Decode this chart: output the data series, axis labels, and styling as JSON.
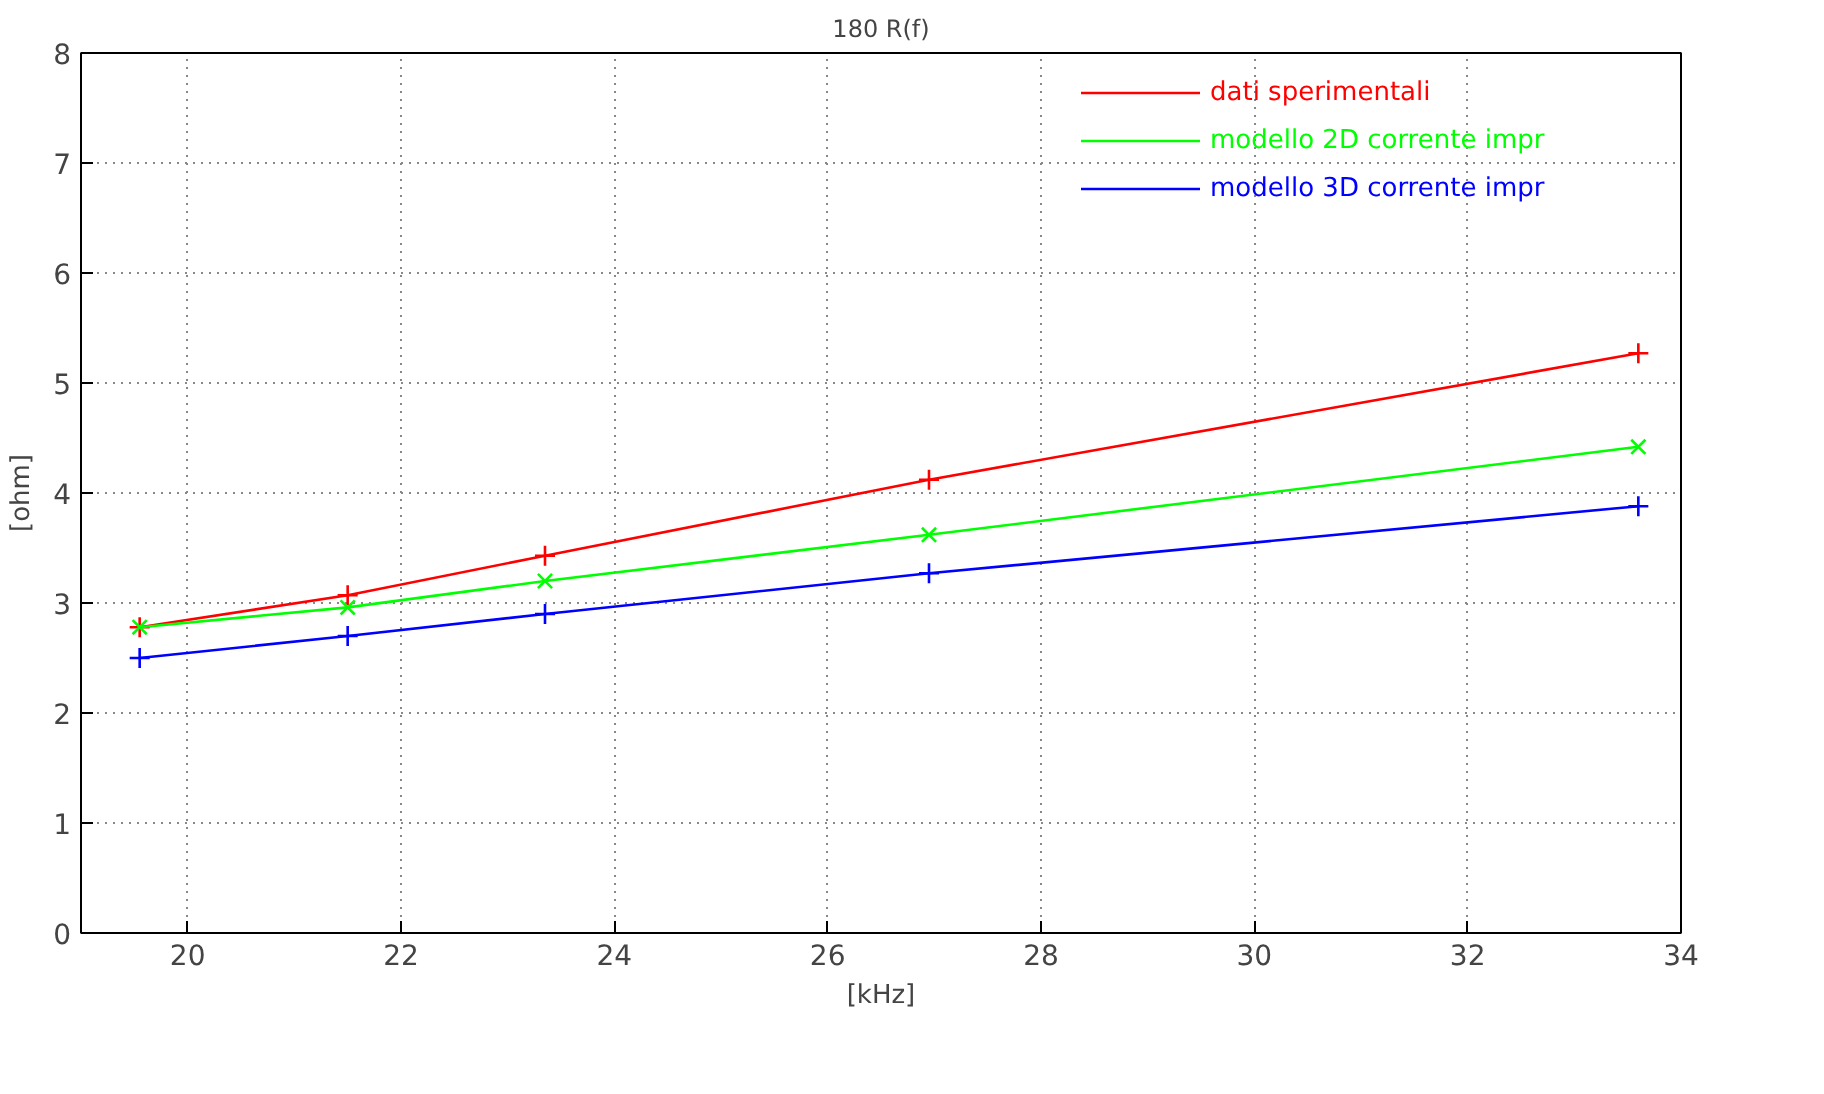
{
  "chart_data": {
    "type": "line",
    "title": "180 R(f)",
    "xlabel": "[kHz]",
    "ylabel": "[ohm]",
    "xlim": [
      19,
      34
    ],
    "xticks": [
      20,
      22,
      24,
      26,
      28,
      30,
      32,
      34
    ],
    "ylim": [
      0,
      8
    ],
    "yticks": [
      0,
      1,
      2,
      3,
      4,
      5,
      6,
      7,
      8
    ],
    "grid": true,
    "legend": "top right",
    "line_style": "solid",
    "x": [
      19.55,
      21.5,
      23.35,
      26.95,
      33.6
    ],
    "series": [
      {
        "name": "dati sperimentali",
        "color": "#ff0000",
        "marker": "cross",
        "values": [
          2.78,
          3.07,
          3.43,
          4.12,
          5.27
        ]
      },
      {
        "name": "modello 2D corrente impr",
        "color": "#00ff00",
        "marker": "x",
        "values": [
          2.78,
          2.96,
          3.2,
          3.62,
          4.42
        ]
      },
      {
        "name": "modello 3D corrente impr",
        "color": "#0000ff",
        "marker": "cross",
        "values": [
          2.5,
          2.7,
          2.9,
          3.27,
          3.88
        ]
      }
    ]
  }
}
